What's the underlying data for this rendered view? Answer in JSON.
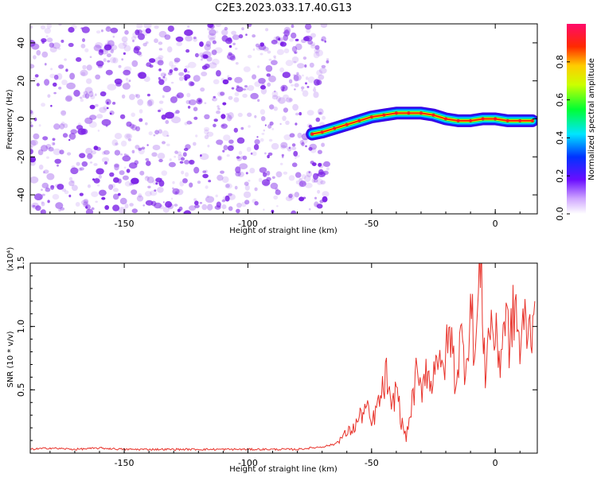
{
  "title": "C2E3.2023.033.17.40.G13",
  "colors": {
    "noise": "#7a1fe6",
    "signal_line": "#e8332b",
    "axis": "#000000"
  },
  "chart_data": [
    {
      "type": "heatmap",
      "name": "spectrogram",
      "xlabel": "Height of straight line (km)",
      "ylabel": "Frequency (Hz)",
      "xlim": [
        -188,
        17
      ],
      "ylim": [
        -50,
        50
      ],
      "xticks": [
        -150,
        -100,
        -50,
        0
      ],
      "xtick_labels": [
        "-150",
        "-100",
        "-50",
        "0"
      ],
      "yticks": [
        -40,
        -20,
        0,
        20,
        40
      ],
      "ytick_labels": [
        "-40",
        "-20",
        "0",
        "20",
        "40"
      ],
      "colorbar": {
        "label": "Normalized spectral amplitude",
        "range": [
          0,
          1
        ],
        "ticks": [
          0.0,
          0.2,
          0.4,
          0.6,
          0.8
        ],
        "tick_labels": [
          "0.0",
          "0.2",
          "0.4",
          "0.6",
          "0.8"
        ]
      },
      "noise_region_x": [
        -188,
        -70
      ],
      "signal_track": {
        "x": [
          -74,
          -70,
          -65,
          -60,
          -55,
          -50,
          -45,
          -40,
          -35,
          -30,
          -25,
          -20,
          -15,
          -10,
          -5,
          0,
          5,
          10,
          15
        ],
        "freq": [
          -8,
          -7,
          -5,
          -3,
          -1,
          1,
          2,
          3,
          3,
          3,
          2,
          0,
          -1,
          -1,
          0,
          0,
          -1,
          -1,
          -1
        ]
      }
    },
    {
      "type": "line",
      "name": "snr",
      "xlabel": "Height of straight line (km)",
      "ylabel": "SNR (10 * v/v)",
      "scale_label": "(x10⁴)",
      "xlim": [
        -188,
        17
      ],
      "ylim": [
        0,
        1.5
      ],
      "xticks": [
        -150,
        -100,
        -50,
        0
      ],
      "xtick_labels": [
        "-150",
        "-100",
        "-50",
        "0"
      ],
      "yticks": [
        0.5,
        1.0,
        1.5
      ],
      "ytick_labels": [
        "0.5",
        "1.0",
        "1.5"
      ],
      "series": [
        {
          "name": "SNR",
          "x": [
            -188,
            -180,
            -170,
            -160,
            -150,
            -140,
            -130,
            -120,
            -110,
            -100,
            -90,
            -80,
            -75,
            -70,
            -65,
            -60,
            -57,
            -55,
            -52,
            -50,
            -48,
            -46,
            -44,
            -42,
            -40,
            -38,
            -36,
            -34,
            -32,
            -30,
            -28,
            -26,
            -24,
            -22,
            -20,
            -18,
            -16,
            -14,
            -12,
            -10,
            -8,
            -6,
            -4,
            -2,
            0,
            2,
            4,
            6,
            8,
            10,
            12,
            14,
            16
          ],
          "values": [
            0.03,
            0.04,
            0.03,
            0.04,
            0.03,
            0.03,
            0.03,
            0.03,
            0.03,
            0.03,
            0.03,
            0.03,
            0.04,
            0.05,
            0.07,
            0.16,
            0.2,
            0.28,
            0.36,
            0.22,
            0.35,
            0.45,
            0.62,
            0.3,
            0.55,
            0.25,
            0.12,
            0.35,
            0.6,
            0.48,
            0.72,
            0.5,
            0.85,
            0.6,
            0.78,
            0.95,
            0.55,
            0.9,
            0.7,
            1.15,
            0.8,
            1.5,
            0.65,
            1.05,
            0.9,
            0.75,
            1.1,
            0.85,
            1.2,
            0.8,
            1.05,
            0.95,
            1.2
          ]
        }
      ]
    }
  ]
}
